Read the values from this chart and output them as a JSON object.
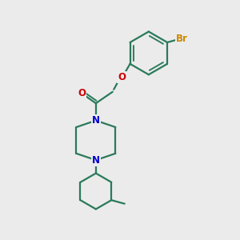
{
  "bg_color": "#ebebeb",
  "bond_color": "#2a7a5a",
  "bond_width": 1.6,
  "N_color": "#0000cc",
  "O_color": "#cc0000",
  "Br_color": "#cc8800",
  "font_size_atom": 8.5,
  "figsize": [
    3.0,
    3.0
  ],
  "dpi": 100,
  "xlim": [
    0,
    10
  ],
  "ylim": [
    0,
    10
  ]
}
